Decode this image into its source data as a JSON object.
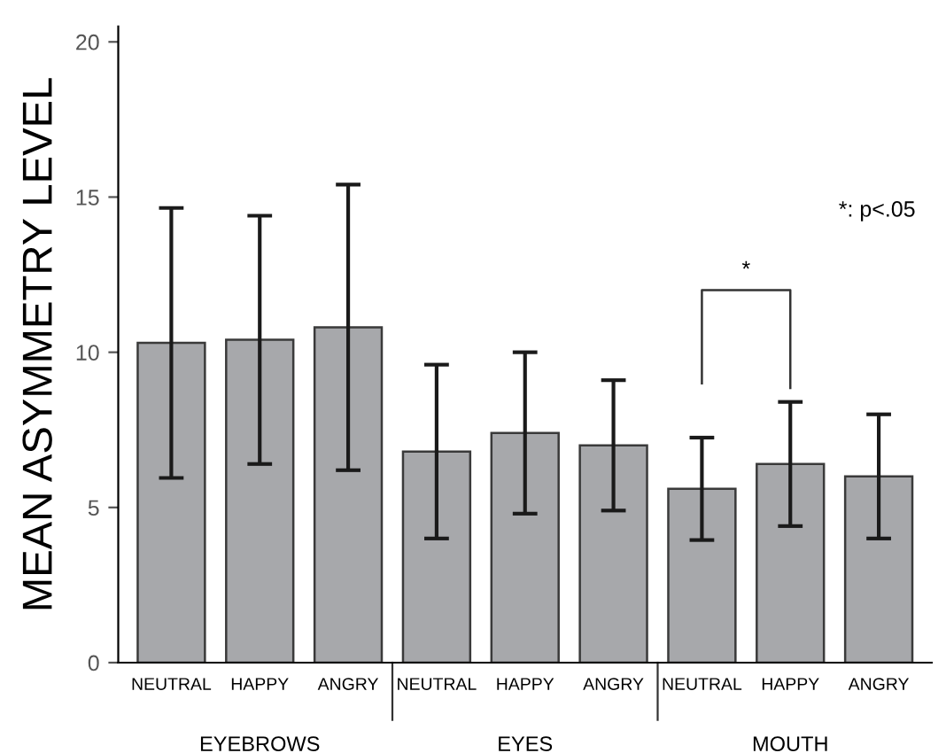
{
  "chart_data": {
    "type": "bar",
    "ylabel": "MEAN ASYMMETRY LEVEL",
    "categories": [
      "NEUTRAL",
      "HAPPY",
      "ANGRY",
      "NEUTRAL",
      "HAPPY",
      "ANGRY",
      "NEUTRAL",
      "HAPPY",
      "ANGRY"
    ],
    "values": [
      10.3,
      10.4,
      10.8,
      6.8,
      7.4,
      7.0,
      5.6,
      6.4,
      6.0
    ],
    "errors": [
      4.35,
      4.0,
      4.6,
      2.8,
      2.6,
      2.1,
      1.65,
      2.0,
      2.0
    ],
    "color": "#a7a8ab",
    "ylim": [
      0,
      20.5
    ],
    "yticks": [
      0,
      5,
      10,
      15,
      20
    ],
    "grid": false,
    "legend": false,
    "annotations": [
      "EYEBROWS",
      "EYES",
      "MOUTH",
      "*: p<.05",
      "*"
    ]
  }
}
